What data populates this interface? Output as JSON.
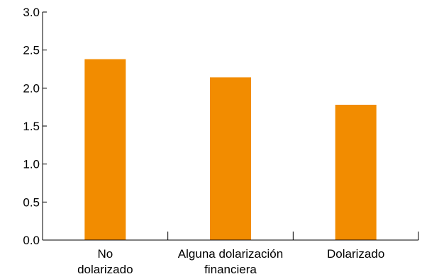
{
  "chart_data": {
    "type": "bar",
    "categories": [
      [
        "No",
        "dolarizado"
      ],
      [
        "Alguna dolarización",
        "financiera"
      ],
      [
        "Dolarizado"
      ]
    ],
    "values": [
      2.38,
      2.14,
      1.78
    ],
    "ylim": [
      0,
      3
    ],
    "yticks": [
      "0.0",
      "0.5",
      "1.0",
      "1.5",
      "2.0",
      "2.5",
      "3.0"
    ],
    "title": "",
    "xlabel": "",
    "ylabel": "",
    "grid": false,
    "bar_color": "#F28C00",
    "axis_color": "#000000"
  }
}
